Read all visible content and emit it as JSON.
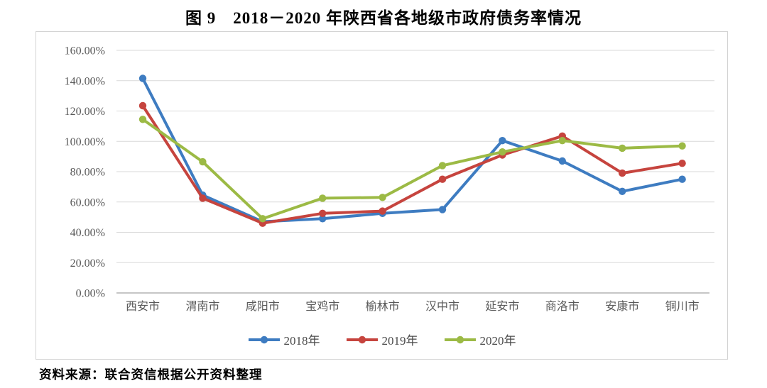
{
  "page": {
    "title": "图 9　2018－2020 年陕西省各地级市政府债务率情况",
    "source": "资料来源：联合资信根据公开资料整理"
  },
  "chart_data": {
    "type": "line",
    "title": "图 9　2018－2020 年陕西省各地级市政府债务率情况",
    "categories": [
      "西安市",
      "渭南市",
      "咸阳市",
      "宝鸡市",
      "榆林市",
      "汉中市",
      "延安市",
      "商洛市",
      "安康市",
      "铜川市"
    ],
    "series": [
      {
        "name": "2018年",
        "color": "#3E7CC1",
        "values": [
          141.5,
          64.5,
          47,
          49,
          52.5,
          55,
          100.5,
          87,
          67,
          75
        ]
      },
      {
        "name": "2019年",
        "color": "#C6443E",
        "values": [
          123.5,
          62.5,
          46,
          52.5,
          54,
          75,
          91,
          103.5,
          79,
          85.5
        ]
      },
      {
        "name": "2020年",
        "color": "#9CBA45",
        "values": [
          114.5,
          86.5,
          49,
          62.5,
          63,
          84,
          93,
          100.5,
          95.5,
          97
        ]
      }
    ],
    "y_axis": {
      "unit": "%",
      "min": 0,
      "max": 160,
      "tick_step": 20,
      "tick_labels": [
        "0.00%",
        "20.00%",
        "40.00%",
        "60.00%",
        "80.00%",
        "100.00%",
        "120.00%",
        "140.00%",
        "160.00%"
      ]
    },
    "xlabel": "",
    "ylabel": "",
    "grid": true,
    "legend_position": "bottom",
    "colors": {
      "gridline": "#d9d9d9",
      "axis_line": "#b3b3b3",
      "tick_text": "#595959",
      "frame_border": "#d3d3d3"
    }
  }
}
